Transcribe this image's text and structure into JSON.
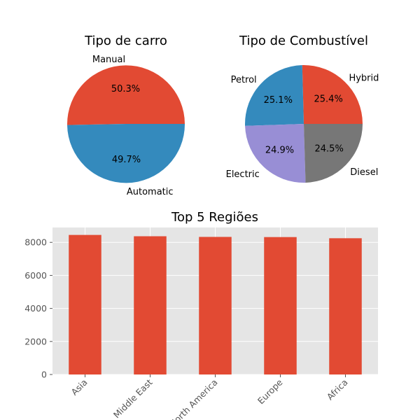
{
  "chart_data": [
    {
      "type": "pie",
      "title": "Tipo de carro",
      "slices": [
        {
          "label": "Manual",
          "value": 50.3,
          "pct_label": "50.3%",
          "color": "#E24A33"
        },
        {
          "label": "Automatic",
          "value": 49.7,
          "pct_label": "49.7%",
          "color": "#348ABD"
        }
      ]
    },
    {
      "type": "pie",
      "title": "Tipo de Combustível",
      "slices": [
        {
          "label": "Hybrid",
          "value": 25.4,
          "pct_label": "25.4%",
          "color": "#E24A33"
        },
        {
          "label": "Petrol",
          "value": 25.1,
          "pct_label": "25.1%",
          "color": "#348ABD"
        },
        {
          "label": "Electric",
          "value": 24.9,
          "pct_label": "24.9%",
          "color": "#988ED5"
        },
        {
          "label": "Diesel",
          "value": 24.5,
          "pct_label": "24.5%",
          "color": "#777777"
        }
      ]
    },
    {
      "type": "bar",
      "title": "Top 5 Regiões",
      "categories": [
        "Asia",
        "Middle East",
        "North America",
        "Europe",
        "Africa"
      ],
      "values": [
        8450,
        8370,
        8330,
        8320,
        8250
      ],
      "ylim": [
        0,
        8900
      ],
      "yticks": [
        0,
        2000,
        4000,
        6000,
        8000
      ],
      "ytick_labels": [
        "0",
        "2000",
        "4000",
        "6000",
        "8000"
      ],
      "bar_color": "#E24A33",
      "background": "#E5E5E5",
      "grid": true
    }
  ]
}
